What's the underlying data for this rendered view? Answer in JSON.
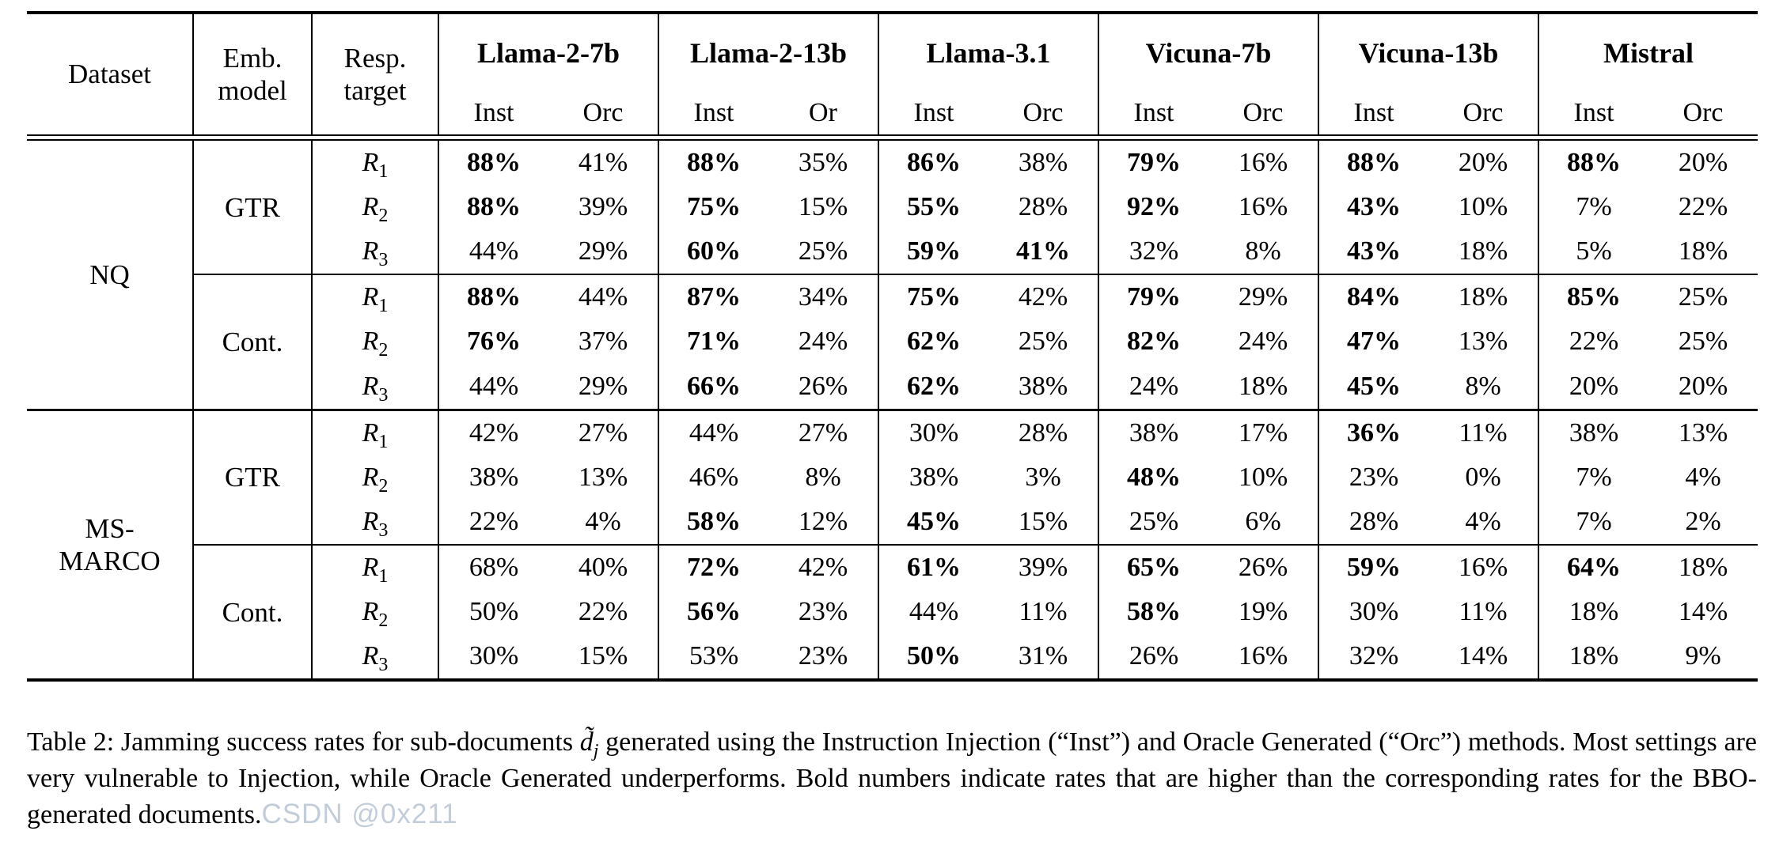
{
  "table": {
    "columns": {
      "dataset": "Dataset",
      "emb": [
        "Emb.",
        "model"
      ],
      "resp": [
        "Resp.",
        "target"
      ],
      "groups": [
        {
          "name": "Llama-2-7b",
          "sub": [
            "Inst",
            "Orc"
          ]
        },
        {
          "name": "Llama-2-13b",
          "sub": [
            "Inst",
            "Or"
          ]
        },
        {
          "name": "Llama-3.1",
          "sub": [
            "Inst",
            "Orc"
          ]
        },
        {
          "name": "Vicuna-7b",
          "sub": [
            "Inst",
            "Orc"
          ]
        },
        {
          "name": "Vicuna-13b",
          "sub": [
            "Inst",
            "Orc"
          ]
        },
        {
          "name": "Mistral",
          "sub": [
            "Inst",
            "Orc"
          ]
        }
      ]
    },
    "blocks": [
      {
        "dataset": [
          "NQ"
        ],
        "subblocks": [
          {
            "emb": "GTR",
            "rows": [
              {
                "target": [
                  "R",
                  "1"
                ],
                "cells": [
                  {
                    "t": "88%",
                    "b": true
                  },
                  {
                    "t": "41%",
                    "b": false
                  },
                  {
                    "t": "88%",
                    "b": true
                  },
                  {
                    "t": "35%",
                    "b": false
                  },
                  {
                    "t": "86%",
                    "b": true
                  },
                  {
                    "t": "38%",
                    "b": false
                  },
                  {
                    "t": "79%",
                    "b": true
                  },
                  {
                    "t": "16%",
                    "b": false
                  },
                  {
                    "t": "88%",
                    "b": true
                  },
                  {
                    "t": "20%",
                    "b": false
                  },
                  {
                    "t": "88%",
                    "b": true
                  },
                  {
                    "t": "20%",
                    "b": false
                  }
                ]
              },
              {
                "target": [
                  "R",
                  "2"
                ],
                "cells": [
                  {
                    "t": "88%",
                    "b": true
                  },
                  {
                    "t": "39%",
                    "b": false
                  },
                  {
                    "t": "75%",
                    "b": true
                  },
                  {
                    "t": "15%",
                    "b": false
                  },
                  {
                    "t": "55%",
                    "b": true
                  },
                  {
                    "t": "28%",
                    "b": false
                  },
                  {
                    "t": "92%",
                    "b": true
                  },
                  {
                    "t": "16%",
                    "b": false
                  },
                  {
                    "t": "43%",
                    "b": true
                  },
                  {
                    "t": "10%",
                    "b": false
                  },
                  {
                    "t": "7%",
                    "b": false
                  },
                  {
                    "t": "22%",
                    "b": false
                  }
                ]
              },
              {
                "target": [
                  "R",
                  "3"
                ],
                "cells": [
                  {
                    "t": "44%",
                    "b": false
                  },
                  {
                    "t": "29%",
                    "b": false
                  },
                  {
                    "t": "60%",
                    "b": true
                  },
                  {
                    "t": "25%",
                    "b": false
                  },
                  {
                    "t": "59%",
                    "b": true
                  },
                  {
                    "t": "41%",
                    "b": true
                  },
                  {
                    "t": "32%",
                    "b": false
                  },
                  {
                    "t": "8%",
                    "b": false
                  },
                  {
                    "t": "43%",
                    "b": true
                  },
                  {
                    "t": "18%",
                    "b": false
                  },
                  {
                    "t": "5%",
                    "b": false
                  },
                  {
                    "t": "18%",
                    "b": false
                  }
                ]
              }
            ]
          },
          {
            "emb": "Cont.",
            "rows": [
              {
                "target": [
                  "R",
                  "1"
                ],
                "cells": [
                  {
                    "t": "88%",
                    "b": true
                  },
                  {
                    "t": "44%",
                    "b": false
                  },
                  {
                    "t": "87%",
                    "b": true
                  },
                  {
                    "t": "34%",
                    "b": false
                  },
                  {
                    "t": "75%",
                    "b": true
                  },
                  {
                    "t": "42%",
                    "b": false
                  },
                  {
                    "t": "79%",
                    "b": true
                  },
                  {
                    "t": "29%",
                    "b": false
                  },
                  {
                    "t": "84%",
                    "b": true
                  },
                  {
                    "t": "18%",
                    "b": false
                  },
                  {
                    "t": "85%",
                    "b": true
                  },
                  {
                    "t": "25%",
                    "b": false
                  }
                ]
              },
              {
                "target": [
                  "R",
                  "2"
                ],
                "cells": [
                  {
                    "t": "76%",
                    "b": true
                  },
                  {
                    "t": "37%",
                    "b": false
                  },
                  {
                    "t": "71%",
                    "b": true
                  },
                  {
                    "t": "24%",
                    "b": false
                  },
                  {
                    "t": "62%",
                    "b": true
                  },
                  {
                    "t": "25%",
                    "b": false
                  },
                  {
                    "t": "82%",
                    "b": true
                  },
                  {
                    "t": "24%",
                    "b": false
                  },
                  {
                    "t": "47%",
                    "b": true
                  },
                  {
                    "t": "13%",
                    "b": false
                  },
                  {
                    "t": "22%",
                    "b": false
                  },
                  {
                    "t": "25%",
                    "b": false
                  }
                ]
              },
              {
                "target": [
                  "R",
                  "3"
                ],
                "cells": [
                  {
                    "t": "44%",
                    "b": false
                  },
                  {
                    "t": "29%",
                    "b": false
                  },
                  {
                    "t": "66%",
                    "b": true
                  },
                  {
                    "t": "26%",
                    "b": false
                  },
                  {
                    "t": "62%",
                    "b": true
                  },
                  {
                    "t": "38%",
                    "b": false
                  },
                  {
                    "t": "24%",
                    "b": false
                  },
                  {
                    "t": "18%",
                    "b": false
                  },
                  {
                    "t": "45%",
                    "b": true
                  },
                  {
                    "t": "8%",
                    "b": false
                  },
                  {
                    "t": "20%",
                    "b": false
                  },
                  {
                    "t": "20%",
                    "b": false
                  }
                ]
              }
            ]
          }
        ]
      },
      {
        "dataset": [
          "MS-",
          "MARCO"
        ],
        "subblocks": [
          {
            "emb": "GTR",
            "rows": [
              {
                "target": [
                  "R",
                  "1"
                ],
                "cells": [
                  {
                    "t": "42%",
                    "b": false
                  },
                  {
                    "t": "27%",
                    "b": false
                  },
                  {
                    "t": "44%",
                    "b": false
                  },
                  {
                    "t": "27%",
                    "b": false
                  },
                  {
                    "t": "30%",
                    "b": false
                  },
                  {
                    "t": "28%",
                    "b": false
                  },
                  {
                    "t": "38%",
                    "b": false
                  },
                  {
                    "t": "17%",
                    "b": false
                  },
                  {
                    "t": "36%",
                    "b": true
                  },
                  {
                    "t": "11%",
                    "b": false
                  },
                  {
                    "t": "38%",
                    "b": false
                  },
                  {
                    "t": "13%",
                    "b": false
                  }
                ]
              },
              {
                "target": [
                  "R",
                  "2"
                ],
                "cells": [
                  {
                    "t": "38%",
                    "b": false
                  },
                  {
                    "t": "13%",
                    "b": false
                  },
                  {
                    "t": "46%",
                    "b": false
                  },
                  {
                    "t": "8%",
                    "b": false
                  },
                  {
                    "t": "38%",
                    "b": false
                  },
                  {
                    "t": "3%",
                    "b": false
                  },
                  {
                    "t": "48%",
                    "b": true
                  },
                  {
                    "t": "10%",
                    "b": false
                  },
                  {
                    "t": "23%",
                    "b": false
                  },
                  {
                    "t": "0%",
                    "b": false
                  },
                  {
                    "t": "7%",
                    "b": false
                  },
                  {
                    "t": "4%",
                    "b": false
                  }
                ]
              },
              {
                "target": [
                  "R",
                  "3"
                ],
                "cells": [
                  {
                    "t": "22%",
                    "b": false
                  },
                  {
                    "t": "4%",
                    "b": false
                  },
                  {
                    "t": "58%",
                    "b": true
                  },
                  {
                    "t": "12%",
                    "b": false
                  },
                  {
                    "t": "45%",
                    "b": true
                  },
                  {
                    "t": "15%",
                    "b": false
                  },
                  {
                    "t": "25%",
                    "b": false
                  },
                  {
                    "t": "6%",
                    "b": false
                  },
                  {
                    "t": "28%",
                    "b": false
                  },
                  {
                    "t": "4%",
                    "b": false
                  },
                  {
                    "t": "7%",
                    "b": false
                  },
                  {
                    "t": "2%",
                    "b": false
                  }
                ]
              }
            ]
          },
          {
            "emb": "Cont.",
            "rows": [
              {
                "target": [
                  "R",
                  "1"
                ],
                "cells": [
                  {
                    "t": "68%",
                    "b": false
                  },
                  {
                    "t": "40%",
                    "b": false
                  },
                  {
                    "t": "72%",
                    "b": true
                  },
                  {
                    "t": "42%",
                    "b": false
                  },
                  {
                    "t": "61%",
                    "b": true
                  },
                  {
                    "t": "39%",
                    "b": false
                  },
                  {
                    "t": "65%",
                    "b": true
                  },
                  {
                    "t": "26%",
                    "b": false
                  },
                  {
                    "t": "59%",
                    "b": true
                  },
                  {
                    "t": "16%",
                    "b": false
                  },
                  {
                    "t": "64%",
                    "b": true
                  },
                  {
                    "t": "18%",
                    "b": false
                  }
                ]
              },
              {
                "target": [
                  "R",
                  "2"
                ],
                "cells": [
                  {
                    "t": "50%",
                    "b": false
                  },
                  {
                    "t": "22%",
                    "b": false
                  },
                  {
                    "t": "56%",
                    "b": true
                  },
                  {
                    "t": "23%",
                    "b": false
                  },
                  {
                    "t": "44%",
                    "b": false
                  },
                  {
                    "t": "11%",
                    "b": false
                  },
                  {
                    "t": "58%",
                    "b": true
                  },
                  {
                    "t": "19%",
                    "b": false
                  },
                  {
                    "t": "30%",
                    "b": false
                  },
                  {
                    "t": "11%",
                    "b": false
                  },
                  {
                    "t": "18%",
                    "b": false
                  },
                  {
                    "t": "14%",
                    "b": false
                  }
                ]
              },
              {
                "target": [
                  "R",
                  "3"
                ],
                "cells": [
                  {
                    "t": "30%",
                    "b": false
                  },
                  {
                    "t": "15%",
                    "b": false
                  },
                  {
                    "t": "53%",
                    "b": false
                  },
                  {
                    "t": "23%",
                    "b": false
                  },
                  {
                    "t": "50%",
                    "b": true
                  },
                  {
                    "t": "31%",
                    "b": false
                  },
                  {
                    "t": "26%",
                    "b": false
                  },
                  {
                    "t": "16%",
                    "b": false
                  },
                  {
                    "t": "32%",
                    "b": false
                  },
                  {
                    "t": "14%",
                    "b": false
                  },
                  {
                    "t": "18%",
                    "b": false
                  },
                  {
                    "t": "9%",
                    "b": false
                  }
                ]
              }
            ]
          }
        ]
      }
    ]
  },
  "caption": {
    "label": "Table 2:",
    "pre_math": "  Jamming success rates for sub-documents ",
    "math": "d̃",
    "math_sub": "j",
    "post_math": " generated using the Instruction Injection (“Inst”) and Oracle Generated (“Orc”) methods.  Most settings are very vulnerable to Injection, while Oracle Generated underperforms. Bold numbers indicate rates that are higher than the corresponding rates for the BBO-generated documents."
  },
  "watermark": "CSDN @0x211",
  "colors": {
    "rule": "#000000",
    "watermark": "#c3cdda",
    "background": "#ffffff"
  }
}
